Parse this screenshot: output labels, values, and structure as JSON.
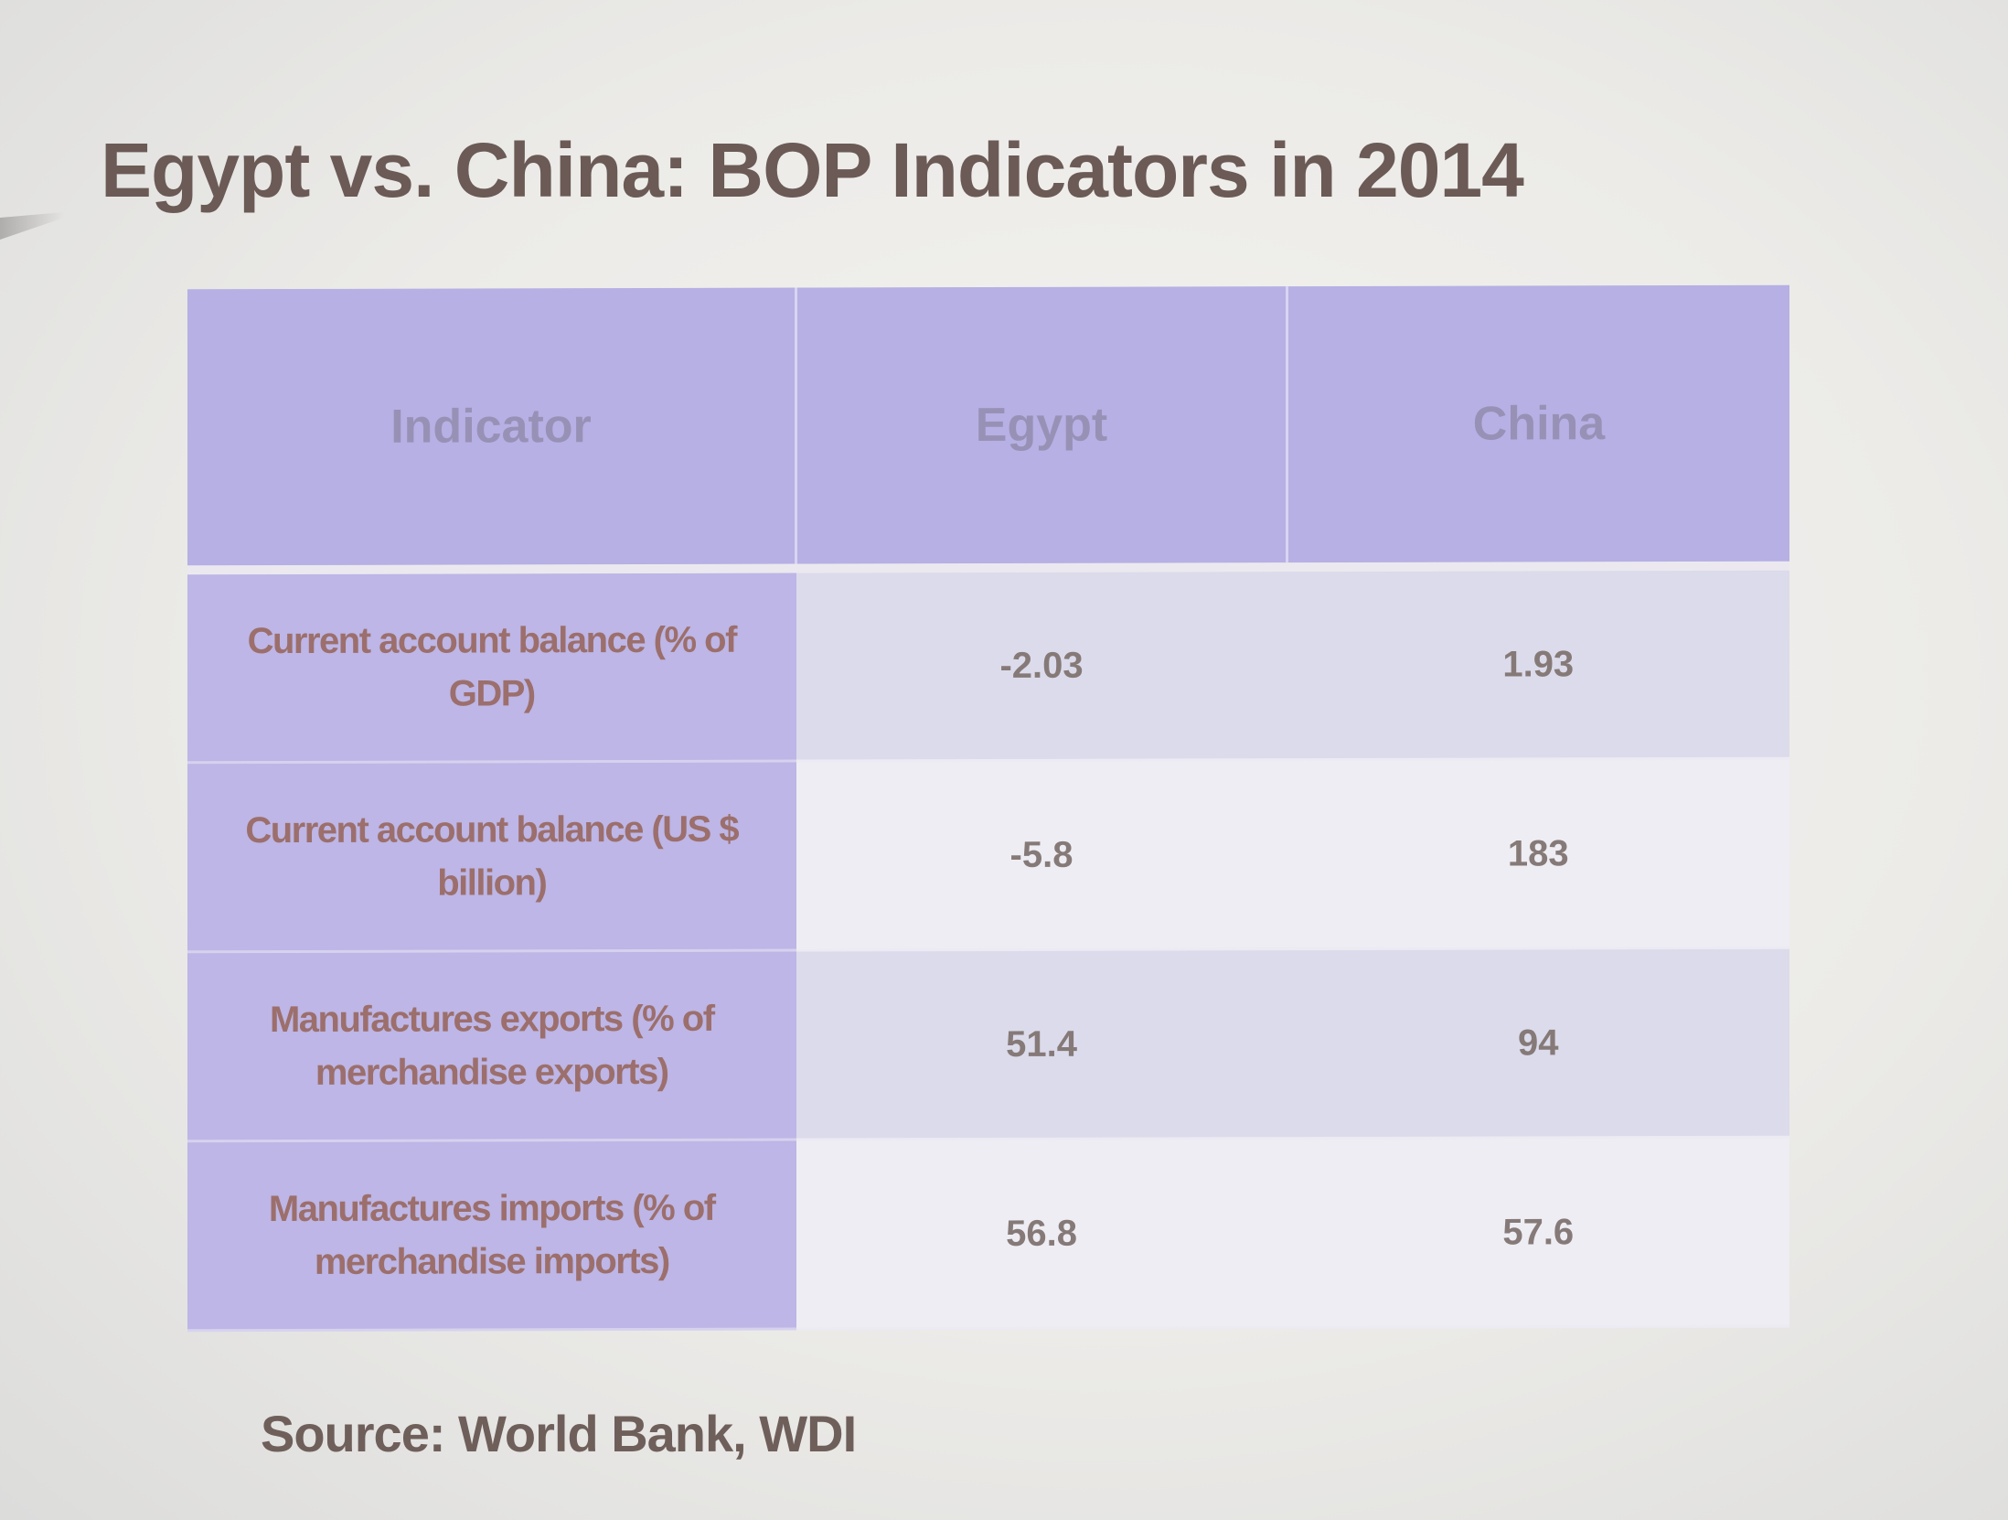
{
  "slide": {
    "title": "Egypt vs. China: BOP Indicators in 2014",
    "source": "Source: World Bank, WDI"
  },
  "table": {
    "headers": [
      "Indicator",
      "Egypt",
      "China"
    ],
    "rows": [
      {
        "indicator": "Current account balance (% of GDP)",
        "egypt": "-2.03",
        "china": "1.93"
      },
      {
        "indicator": "Current account balance (US $ billion)",
        "egypt": "-5.8",
        "china": "183"
      },
      {
        "indicator": "Manufactures exports (% of merchandise exports)",
        "egypt": "51.4",
        "china": "94"
      },
      {
        "indicator": "Manufactures imports (% of merchandise imports)",
        "egypt": "56.8",
        "china": "57.6"
      }
    ]
  },
  "colors": {
    "title": "#6b5a55",
    "header_bg": "#b6b0e4",
    "label_bg": "#bdb6e6",
    "label_text": "#9c6f6c",
    "value_text": "#857a78"
  }
}
